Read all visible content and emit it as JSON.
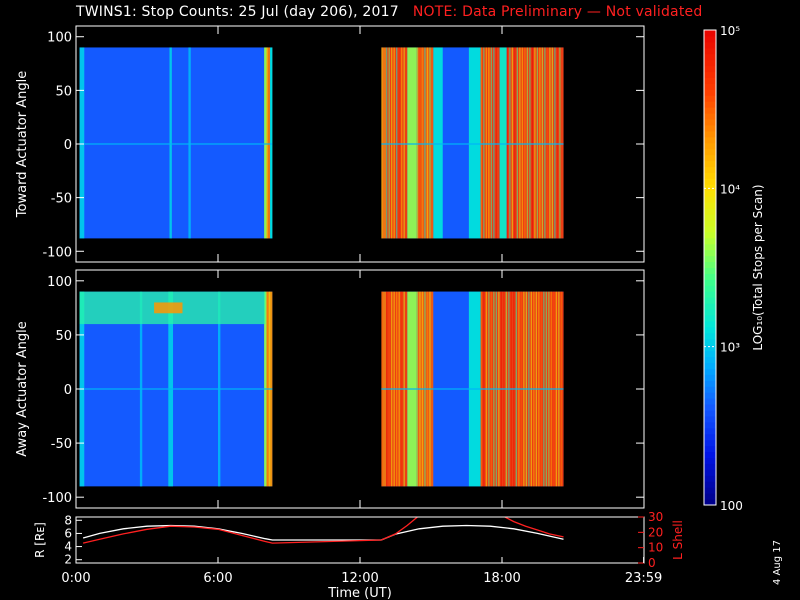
{
  "title": {
    "main": "TWINS1: Stop Counts: 25 Jul (day 206), 2017",
    "note": "NOTE: Data Preliminary — Not validated"
  },
  "stamp": "4 Aug 17",
  "colors": {
    "background": "#000000",
    "axis": "#ffffff",
    "note": "#ff2020",
    "r_line": "#ffffff",
    "lshell_line": "#ff2020"
  },
  "chart_data": [
    {
      "type": "heatmap",
      "panel": "toward",
      "ylabel": "Toward Actuator Angle",
      "ylim": [
        -110,
        110
      ],
      "yticks": [
        100,
        50,
        0,
        -50,
        -100
      ],
      "xlim_hours": [
        0,
        24
      ],
      "data_y_range": [
        -88,
        90
      ],
      "data_time_ranges_hours": [
        [
          0.15,
          8.3
        ],
        [
          12.9,
          20.6
        ]
      ],
      "description_levels_log10": {
        "blue_background": 2.6,
        "cyan_bands": 3.0,
        "orange_late_stripes": 4.5
      },
      "stripes_hours": [
        {
          "t": [
            0.15,
            0.35
          ],
          "v": 3.0
        },
        {
          "t": [
            3.95,
            4.05
          ],
          "v": 3.0
        },
        {
          "t": [
            4.75,
            4.85
          ],
          "v": 2.9
        },
        {
          "t": [
            7.95,
            8.05
          ],
          "v": 3.6
        },
        {
          "t": [
            8.05,
            8.2
          ],
          "v": 4.4
        },
        {
          "t": [
            8.2,
            8.3
          ],
          "v": 3.1
        },
        {
          "t": [
            12.9,
            13.1
          ],
          "v": 4.4
        },
        {
          "t": [
            13.1,
            14.0
          ],
          "v": 4.6
        },
        {
          "t": [
            14.0,
            14.4
          ],
          "v": 3.6
        },
        {
          "t": [
            14.4,
            15.1
          ],
          "v": 4.5
        },
        {
          "t": [
            15.1,
            15.5
          ],
          "v": 3.1
        },
        {
          "t": [
            15.5,
            16.6
          ],
          "v": 2.6
        },
        {
          "t": [
            16.6,
            17.1
          ],
          "v": 3.1
        },
        {
          "t": [
            17.1,
            17.9
          ],
          "v": 4.6
        },
        {
          "t": [
            17.9,
            18.2
          ],
          "v": 3.2
        },
        {
          "t": [
            18.2,
            20.6
          ],
          "v": 4.6
        }
      ]
    },
    {
      "type": "heatmap",
      "panel": "away",
      "ylabel": "Away Actuator Angle",
      "ylim": [
        -110,
        110
      ],
      "yticks": [
        100,
        50,
        0,
        -50,
        -100
      ],
      "xlim_hours": [
        0,
        24
      ],
      "data_y_range": [
        -90,
        90
      ],
      "data_time_ranges_hours": [
        [
          0.15,
          8.3
        ],
        [
          12.9,
          20.6
        ]
      ],
      "stripes_hours": [
        {
          "t": [
            0.15,
            0.35
          ],
          "v": 3.0
        },
        {
          "t": [
            2.7,
            2.8
          ],
          "v": 2.9
        },
        {
          "t": [
            3.9,
            4.1
          ],
          "v": 3.0
        },
        {
          "t": [
            6.0,
            6.1
          ],
          "v": 2.9
        },
        {
          "t": [
            7.95,
            8.05
          ],
          "v": 3.6
        },
        {
          "t": [
            8.05,
            8.3
          ],
          "v": 4.3
        },
        {
          "t": [
            12.9,
            13.1
          ],
          "v": 4.4
        },
        {
          "t": [
            13.1,
            14.0
          ],
          "v": 4.6
        },
        {
          "t": [
            14.0,
            14.4
          ],
          "v": 3.6
        },
        {
          "t": [
            14.4,
            15.1
          ],
          "v": 4.5
        },
        {
          "t": [
            15.1,
            16.6
          ],
          "v": 2.6
        },
        {
          "t": [
            16.6,
            17.1
          ],
          "v": 3.1
        },
        {
          "t": [
            17.1,
            20.6
          ],
          "v": 4.6
        }
      ],
      "band_high_angle": {
        "y": [
          60,
          90
        ],
        "t": [
          0.15,
          8.0
        ],
        "v": 3.3,
        "peak": {
          "t": [
            3.3,
            4.5
          ],
          "y": [
            70,
            80
          ],
          "v": 4.3
        }
      }
    },
    {
      "type": "colorbar",
      "label": "LOG₁₀(Total Stops per Scan)",
      "scale": "log",
      "range": [
        100,
        100000
      ],
      "ticks": [
        {
          "value": 100,
          "label": "100"
        },
        {
          "value": 1000,
          "label": "10³"
        },
        {
          "value": 10000,
          "label": "10⁴"
        },
        {
          "value": 100000,
          "label": "10⁵"
        }
      ]
    },
    {
      "type": "line",
      "panel": "ephemeris",
      "xlabel": "Time (UT)",
      "xlim_hours": [
        0,
        24
      ],
      "xticks": [
        {
          "value": 0,
          "label": "0:00"
        },
        {
          "value": 6,
          "label": "6:00"
        },
        {
          "value": 12,
          "label": "12:00"
        },
        {
          "value": 18,
          "label": "18:00"
        },
        {
          "value": 23.983,
          "label": "23:59"
        }
      ],
      "left_axis": {
        "label": "R [Rᴇ]",
        "ylim": [
          1.5,
          8.5
        ],
        "yticks": [
          8,
          6,
          4,
          2
        ]
      },
      "right_axis": {
        "label": "L Shell",
        "ylim": [
          0,
          30
        ],
        "yticks": [
          30,
          20,
          10,
          0
        ]
      },
      "series": [
        {
          "axis": "left",
          "color": "#ffffff",
          "x": [
            0.3,
            1,
            2,
            3,
            4,
            5,
            6,
            7,
            8.0,
            8.3,
            12.9,
            13.5,
            14.5,
            15.5,
            16.5,
            17.5,
            18.5,
            19.5,
            20.6
          ],
          "y": [
            5.3,
            6.0,
            6.7,
            7.1,
            7.2,
            7.1,
            6.7,
            6.0,
            5.2,
            5.0,
            5.0,
            5.9,
            6.7,
            7.1,
            7.2,
            7.1,
            6.7,
            6.0,
            5.1
          ]
        },
        {
          "axis": "right",
          "color": "#ff2020",
          "x": [
            0.3,
            1,
            2,
            3,
            4,
            5,
            6,
            7,
            8.0,
            8.3,
            12.9,
            13.5,
            14.0,
            14.5
          ],
          "y": [
            13,
            15.5,
            19,
            22,
            24,
            23.5,
            22,
            18,
            14,
            13,
            15,
            19,
            24.5,
            31
          ]
        },
        {
          "axis": "right",
          "color": "#ff2020",
          "x": [
            18.0,
            18.5,
            19.0,
            19.5,
            20.0,
            20.6
          ],
          "y": [
            31,
            27,
            24,
            21.5,
            19,
            17
          ]
        }
      ]
    }
  ]
}
